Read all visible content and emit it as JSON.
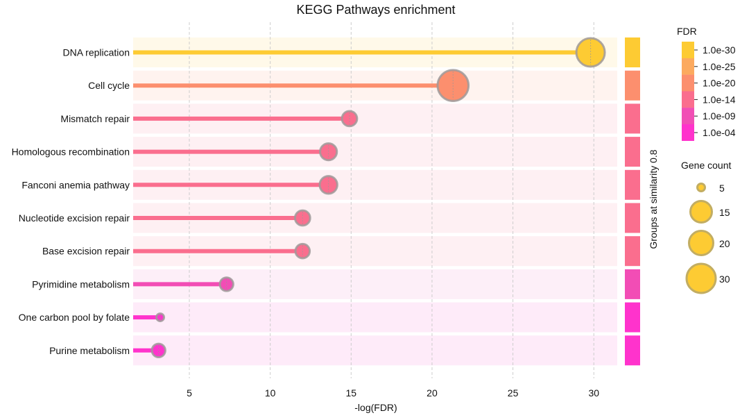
{
  "chart_data": {
    "type": "lollipop",
    "title": "KEGG Pathways enrichment",
    "xlabel": "-log(FDR)",
    "xlim": [
      1.5,
      31.5
    ],
    "xticks": [
      5,
      10,
      15,
      20,
      25,
      30
    ],
    "grid": "x-dashed",
    "side_strip_label": "Groups at similarity 0.8",
    "categories": [
      {
        "name": "DNA replication",
        "value": 29.8,
        "gene_count": 30,
        "color": "#FDCB33",
        "band": "#FFF9E9"
      },
      {
        "name": "Cell cycle",
        "value": 21.3,
        "gene_count": 33,
        "color": "#FC8F6E",
        "band": "#FFF3EF"
      },
      {
        "name": "Mismatch repair",
        "value": 14.9,
        "gene_count": 14,
        "color": "#FA6E8E",
        "band": "#FEF0F3"
      },
      {
        "name": "Homologous recombination",
        "value": 13.6,
        "gene_count": 16,
        "color": "#FA6E8E",
        "band": "#FEF0F3"
      },
      {
        "name": "Fanconi anemia pathway",
        "value": 13.6,
        "gene_count": 17,
        "color": "#FA6E8E",
        "band": "#FEF0F3"
      },
      {
        "name": "Nucleotide excision repair",
        "value": 12.0,
        "gene_count": 14,
        "color": "#FA6E8E",
        "band": "#FEF0F3"
      },
      {
        "name": "Base excision repair",
        "value": 12.0,
        "gene_count": 13,
        "color": "#FA6E8E",
        "band": "#FEF0F3"
      },
      {
        "name": "Pyrimidine metabolism",
        "value": 7.3,
        "gene_count": 12,
        "color": "#F24DB5",
        "band": "#FDEFF8"
      },
      {
        "name": "One carbon pool by folate",
        "value": 3.2,
        "gene_count": 5,
        "color": "#FF33CC",
        "band": "#FEEBF9"
      },
      {
        "name": "Purine metabolism",
        "value": 3.1,
        "gene_count": 12,
        "color": "#FF33CC",
        "band": "#FEEBF9"
      }
    ],
    "fdr_legend": {
      "title": "FDR",
      "entries": [
        {
          "label": "1.0e-30",
          "color": "#FDCB33"
        },
        {
          "label": "1.0e-25",
          "color": "#FCAA5F"
        },
        {
          "label": "1.0e-20",
          "color": "#FC8F6E"
        },
        {
          "label": "1.0e-14",
          "color": "#FA6E8E"
        },
        {
          "label": "1.0e-09",
          "color": "#F14FB5"
        },
        {
          "label": "1.0e-04",
          "color": "#FF33CC"
        }
      ]
    },
    "size_legend": {
      "title": "Gene count",
      "entries": [
        {
          "label": "5",
          "value": 5
        },
        {
          "label": "15",
          "value": 15
        },
        {
          "label": "20",
          "value": 20
        },
        {
          "label": "30",
          "value": 30
        }
      ],
      "color": "#FDCB33"
    }
  }
}
